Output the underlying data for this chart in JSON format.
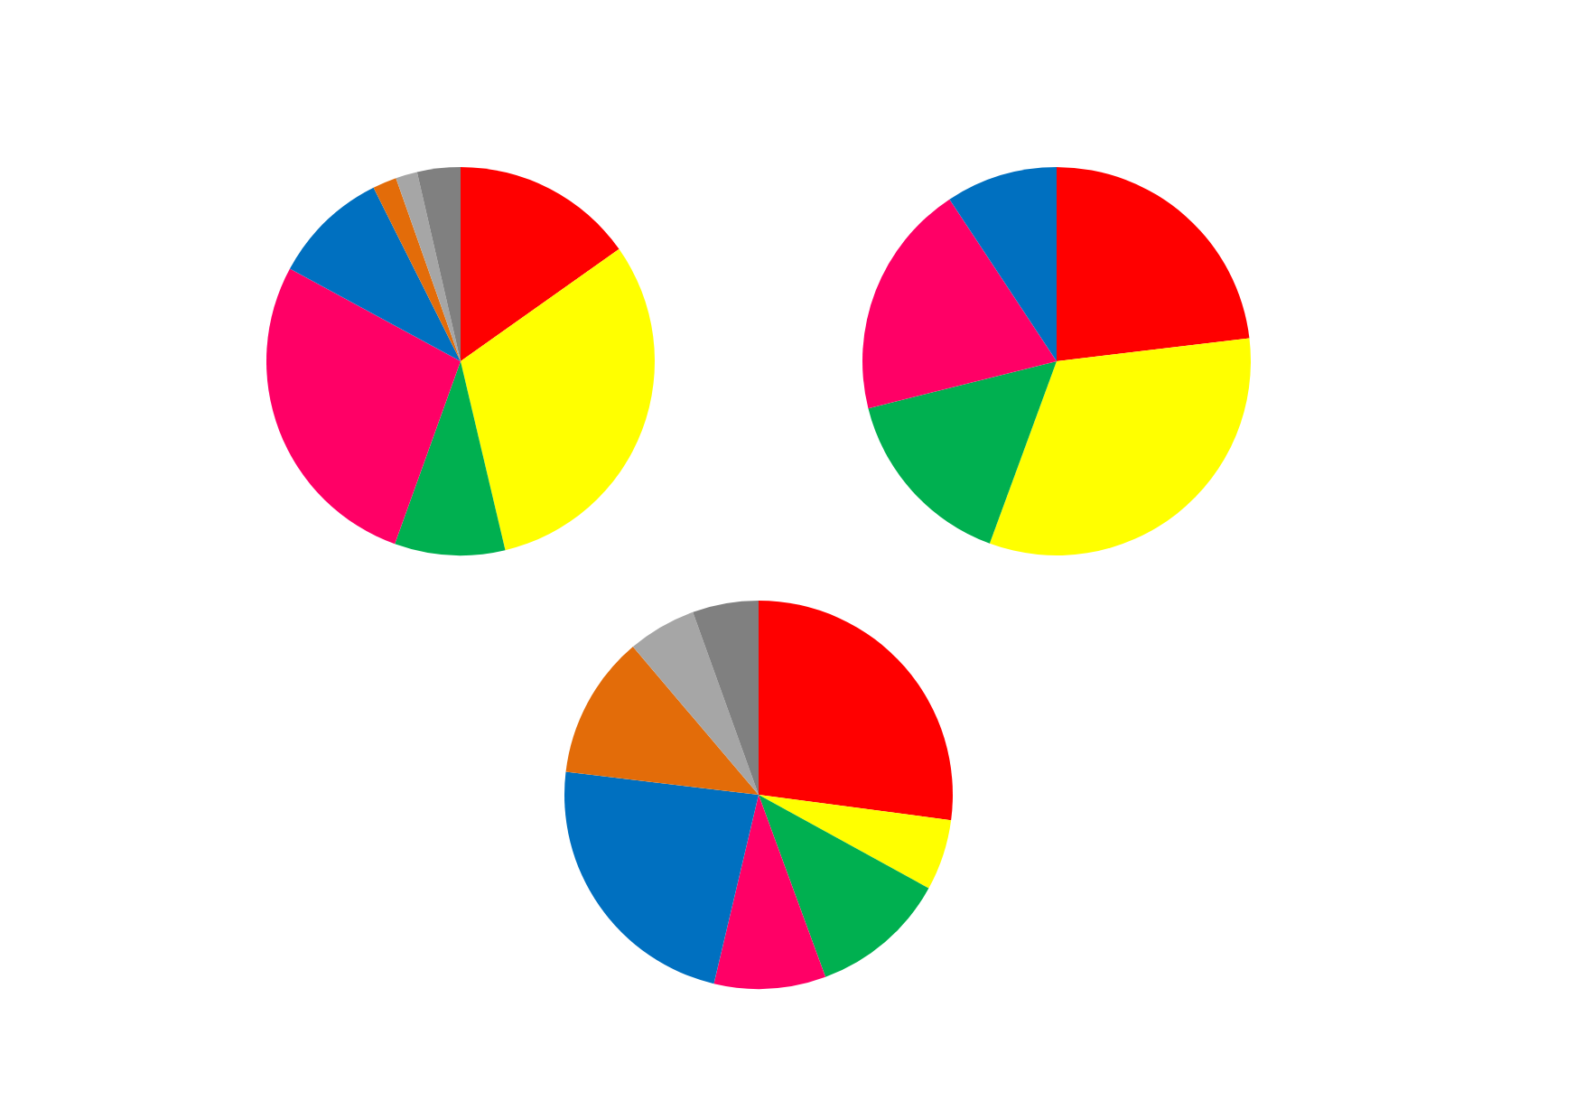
{
  "chart_data": [
    {
      "type": "pie",
      "categories": [
        null,
        null,
        null,
        null,
        null,
        null,
        null,
        null
      ],
      "values": [
        15.2,
        31.1,
        9.2,
        27.4,
        9.7,
        2.0,
        1.8,
        3.6
      ],
      "colors": [
        "#ff0000",
        "#ffff00",
        "#00b050",
        "#ff0066",
        "#0070c0",
        "#e36c09",
        "#a6a6a6",
        "#808080"
      ]
    },
    {
      "type": "pie",
      "categories": [
        null,
        null,
        null,
        null,
        null,
        null,
        null,
        null
      ],
      "values": [
        23.1,
        32.5,
        15.5,
        19.6,
        9.3,
        0,
        0,
        0
      ],
      "colors": [
        "#ff0000",
        "#ffff00",
        "#00b050",
        "#ff0066",
        "#0070c0",
        "#e07b39",
        "#a6a6a6",
        "#808080"
      ]
    },
    {
      "type": "pie",
      "categories": [
        null,
        null,
        null,
        null,
        null,
        null,
        null,
        null
      ],
      "values": [
        27.1,
        5.9,
        11.4,
        9.3,
        23.2,
        11.9,
        5.7,
        5.5
      ],
      "colors": [
        "#ff0000",
        "#ffff00",
        "#00b050",
        "#ff0066",
        "#0070c0",
        "#e36c09",
        "#a6a6a6",
        "#808080"
      ]
    }
  ]
}
